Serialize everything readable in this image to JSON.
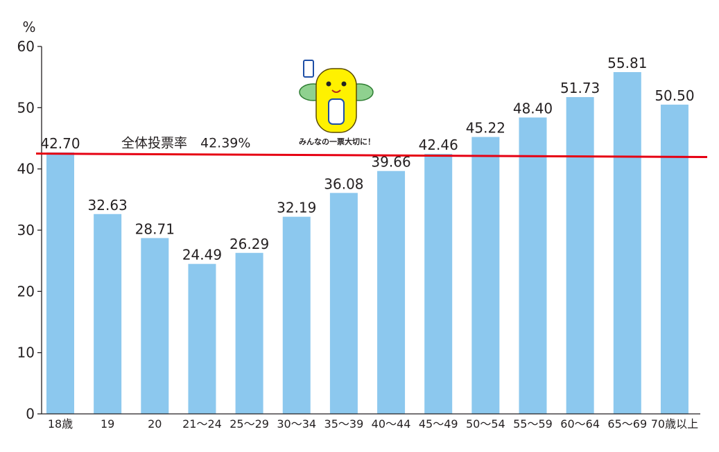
{
  "chart_data": {
    "type": "bar",
    "title": "",
    "xlabel": "",
    "ylabel": "%",
    "ylim": [
      0,
      60
    ],
    "yticks": [
      0,
      10,
      20,
      30,
      40,
      50,
      60
    ],
    "grid": false,
    "categories": [
      "18歳",
      "19",
      "20",
      "21～24",
      "25～29",
      "30～34",
      "35～39",
      "40～44",
      "45～49",
      "50～54",
      "55～59",
      "60～64",
      "65～69",
      "70歳以上"
    ],
    "values": [
      42.7,
      32.63,
      28.71,
      24.49,
      26.29,
      32.19,
      36.08,
      39.66,
      42.46,
      45.22,
      48.4,
      51.73,
      55.81,
      50.5
    ],
    "value_labels": [
      "42.70",
      "32.63",
      "28.71",
      "24.49",
      "26.29",
      "32.19",
      "36.08",
      "39.66",
      "42.46",
      "45.22",
      "48.40",
      "51.73",
      "55.81",
      "50.50"
    ],
    "reference_line": {
      "label": "全体投票率　42.39%",
      "value": 42.39
    },
    "mascot_caption": "みんなの一票大切に！",
    "colors": {
      "bar": "#8cc8ee",
      "reference_line": "#e60012",
      "axis": "#231f20",
      "mascot_body": "#fff100",
      "mascot_wing": "#8fd18f"
    }
  }
}
